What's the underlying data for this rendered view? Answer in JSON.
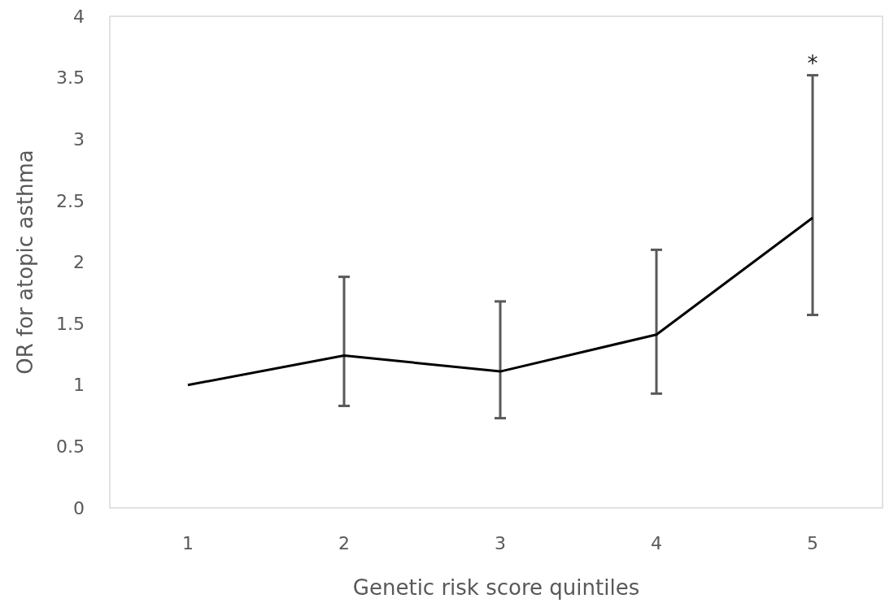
{
  "chart_data": {
    "type": "line",
    "xlabel": "Genetic risk score quintiles",
    "ylabel": "OR for atopic asthma",
    "categories": [
      "1",
      "2",
      "3",
      "4",
      "5"
    ],
    "series": [
      {
        "color": "#000000",
        "values": [
          1.0,
          1.24,
          1.11,
          1.41,
          2.36
        ],
        "errors": [
          null,
          [
            0.83,
            1.88
          ],
          [
            0.73,
            1.68
          ],
          [
            0.93,
            2.1
          ],
          [
            1.57,
            3.52
          ]
        ]
      }
    ],
    "ylim": [
      0,
      4
    ],
    "yticks": [
      0,
      0.5,
      1,
      1.5,
      2,
      2.5,
      3,
      3.5,
      4
    ],
    "grid": false,
    "marker": "none",
    "line_style": "solid",
    "annotations": [
      "*"
    ]
  }
}
